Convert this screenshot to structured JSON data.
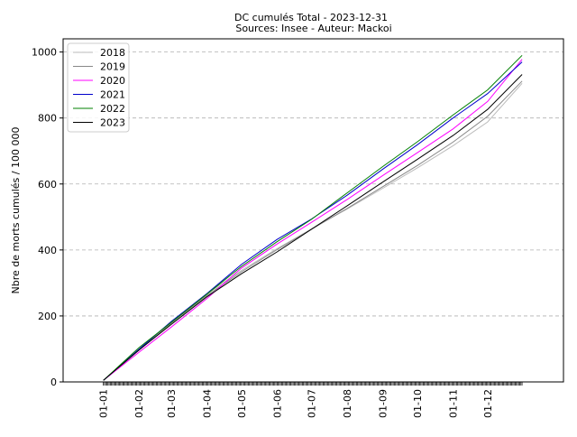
{
  "chart_data": {
    "type": "line",
    "title": "DC cumulés Total  - 2023-12-31",
    "subtitle": "Sources: Insee - Auteur: Mackoi",
    "ylabel": "Nbre de morts cumulés / 100 000",
    "xlabel": "",
    "ylim": [
      0,
      1040
    ],
    "xlim": [
      -35,
      400
    ],
    "yticks": [
      0,
      200,
      400,
      600,
      800,
      1000
    ],
    "ytick_labels": [
      "0",
      "200",
      "400",
      "600",
      "800",
      "1000"
    ],
    "xticks": [
      0,
      31,
      59,
      90,
      120,
      151,
      181,
      212,
      243,
      273,
      304,
      334
    ],
    "xtick_labels": [
      "01-01",
      "01-02",
      "01-03",
      "01-04",
      "01-05",
      "01-06",
      "01-07",
      "01-08",
      "01-09",
      "01-10",
      "01-11",
      "01-12"
    ],
    "grid": "y-dashed",
    "legend_position": "top-left",
    "series": [
      {
        "name": "2018",
        "color": "#bbbbbb",
        "x": [
          0,
          31,
          59,
          90,
          120,
          151,
          181,
          212,
          243,
          273,
          304,
          334,
          364
        ],
        "y": [
          5,
          97,
          183,
          267,
          338,
          404,
          464,
          524,
          587,
          649,
          716,
          788,
          905
        ]
      },
      {
        "name": "2019",
        "color": "#888888",
        "x": [
          0,
          31,
          59,
          90,
          120,
          151,
          181,
          212,
          243,
          273,
          304,
          334,
          364
        ],
        "y": [
          5,
          96,
          178,
          262,
          334,
          401,
          463,
          526,
          592,
          656,
          727,
          805,
          912
        ]
      },
      {
        "name": "2020",
        "color": "#ff00ff",
        "x": [
          0,
          31,
          59,
          90,
          120,
          151,
          181,
          212,
          243,
          273,
          304,
          334,
          364
        ],
        "y": [
          5,
          90,
          166,
          253,
          345,
          418,
          484,
          553,
          626,
          695,
          767,
          850,
          978
        ]
      },
      {
        "name": "2021",
        "color": "#0000cc",
        "x": [
          0,
          31,
          59,
          90,
          120,
          151,
          181,
          212,
          243,
          273,
          304,
          334,
          364
        ],
        "y": [
          5,
          99,
          183,
          268,
          356,
          432,
          494,
          566,
          645,
          719,
          800,
          874,
          970
        ]
      },
      {
        "name": "2022",
        "color": "#008000",
        "x": [
          0,
          31,
          59,
          90,
          120,
          151,
          181,
          212,
          243,
          273,
          304,
          334,
          364
        ],
        "y": [
          5,
          104,
          180,
          266,
          350,
          425,
          493,
          573,
          653,
          728,
          809,
          885,
          990
        ]
      },
      {
        "name": "2023",
        "color": "#000000",
        "x": [
          0,
          31,
          59,
          90,
          120,
          151,
          181,
          212,
          243,
          273,
          304,
          334,
          364
        ],
        "y": [
          5,
          97,
          174,
          258,
          328,
          394,
          463,
          534,
          606,
          675,
          747,
          826,
          932
        ]
      }
    ]
  }
}
